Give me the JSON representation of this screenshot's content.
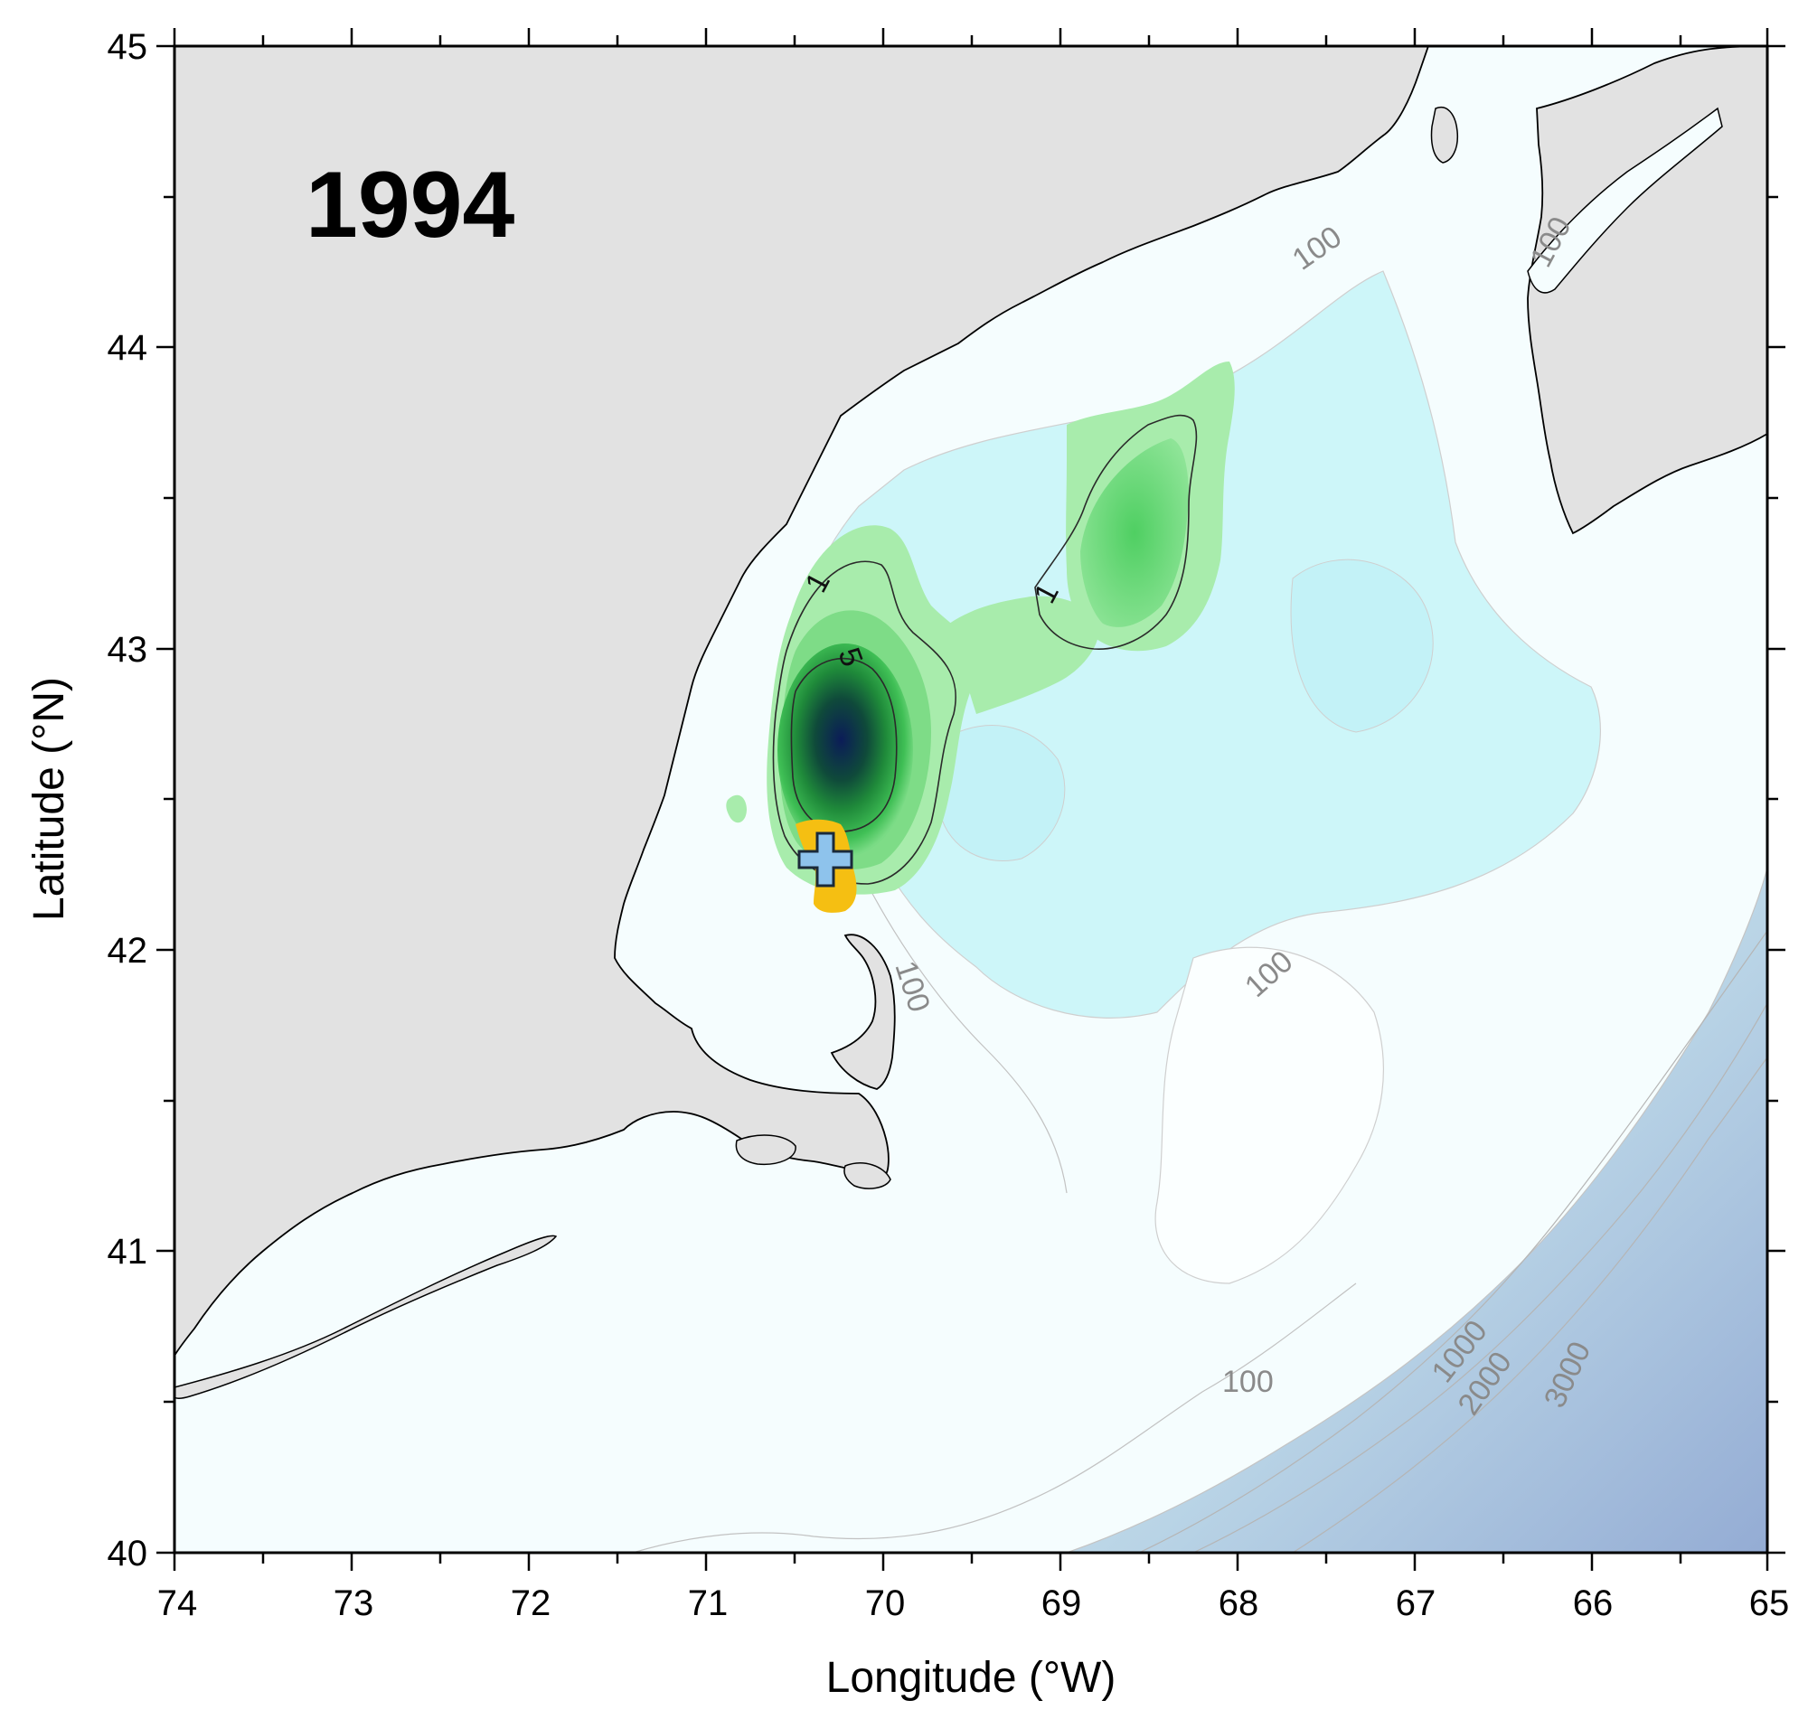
{
  "map": {
    "year": "1994",
    "xlabel": "Longitude (°W)",
    "ylabel": "Latitude (°N)",
    "x_ticks": [
      "74",
      "73",
      "72",
      "71",
      "70",
      "69",
      "68",
      "67",
      "66",
      "65"
    ],
    "y_ticks": [
      "45",
      "44",
      "43",
      "42",
      "41",
      "40"
    ],
    "bathymetry_labels": [
      "100",
      "100",
      "100",
      "100",
      "100",
      "1000",
      "2000",
      "3000"
    ],
    "concentration_labels": [
      "1",
      "1",
      "5"
    ],
    "colors": {
      "land": "#e2e2e2",
      "shelf_water": "#f4fdff",
      "basin_water": "#cdf5f8",
      "deep_water": "#98b2d6",
      "bloom_low": "#a7ecaa",
      "bloom_mid": "#2fb84a",
      "bloom_peak": "#0b1c58",
      "outfall_patch": "#f5bf12",
      "marker": "#8ec3ec"
    },
    "marker": "cross-icon"
  }
}
